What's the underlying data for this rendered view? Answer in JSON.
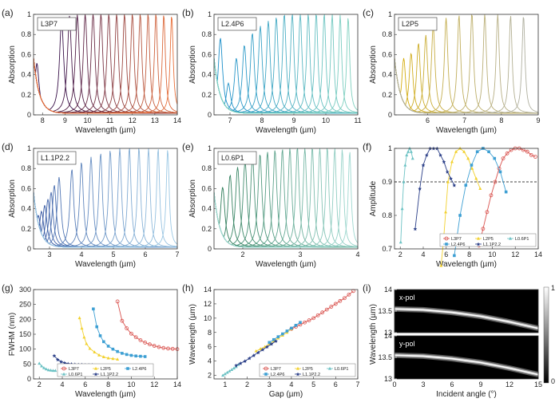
{
  "chart_data": [
    {
      "id": "a",
      "type": "line",
      "panel_label": "(a)",
      "box_label": "L3P7",
      "xlabel": "Wavelength (µm)",
      "ylabel": "Absorption",
      "xlim": [
        7.6,
        14
      ],
      "ylim": [
        0,
        1
      ],
      "xticks": [
        "8",
        "9",
        "10",
        "11",
        "12",
        "13",
        "14"
      ],
      "yticks": [
        "0",
        "0.2",
        "0.4",
        "0.6",
        "0.8",
        "1"
      ],
      "peaks": [
        7.75,
        8.85,
        9.2,
        9.55,
        9.9,
        10.25,
        10.6,
        10.95,
        11.3,
        11.65,
        12.0,
        12.35,
        12.7,
        13.05,
        13.4,
        13.75
      ],
      "peak_heights": [
        0.5,
        0.94,
        0.97,
        0.98,
        0.99,
        1.0,
        1.0,
        1.0,
        1.0,
        1.0,
        1.0,
        1.0,
        1.0,
        1.0,
        0.99,
        0.98
      ],
      "palette": [
        "#2d0a4a",
        "#e8703a"
      ]
    },
    {
      "id": "b",
      "type": "line",
      "panel_label": "(b)",
      "box_label": "L2.4P6",
      "xlabel": "Wavelength (µm)",
      "ylabel": "Absorption",
      "xlim": [
        6.5,
        11
      ],
      "ylim": [
        0,
        1
      ],
      "xticks": [
        "7",
        "8",
        "9",
        "10",
        "11"
      ],
      "yticks": [
        "0",
        "0.2",
        "0.4",
        "0.6",
        "0.8",
        "1"
      ],
      "peaks": [
        6.7,
        6.95,
        7.2,
        7.45,
        7.7,
        7.95,
        8.2,
        8.45,
        8.7,
        8.95,
        9.2,
        9.45,
        9.7,
        9.95,
        10.2,
        10.45,
        10.7
      ],
      "peak_heights": [
        0.75,
        0.3,
        0.55,
        0.68,
        0.8,
        0.87,
        0.92,
        0.96,
        0.99,
        1.0,
        1.0,
        1.0,
        1.0,
        1.0,
        0.99,
        0.98,
        0.96
      ],
      "palette": [
        "#1a8ec9",
        "#7fd0bf"
      ]
    },
    {
      "id": "c",
      "type": "line",
      "panel_label": "(c)",
      "box_label": "L2P5",
      "xlabel": "Wavelength (µm)",
      "ylabel": "Absorption",
      "xlim": [
        5.1,
        9
      ],
      "ylim": [
        0,
        1
      ],
      "xticks": [
        "6",
        "7",
        "8",
        "9"
      ],
      "yticks": [
        "0",
        "0.2",
        "0.4",
        "0.6",
        "0.8",
        "1"
      ],
      "peaks": [
        5.35,
        5.55,
        5.75,
        5.95,
        6.15,
        6.5,
        6.85,
        7.2,
        7.55,
        7.9,
        8.25,
        8.6
      ],
      "peak_heights": [
        0.55,
        0.6,
        0.7,
        0.78,
        0.88,
        0.95,
        0.98,
        1.0,
        1.0,
        1.0,
        0.98,
        0.98
      ],
      "palette": [
        "#d4ac0d",
        "#b0b0a0"
      ]
    },
    {
      "id": "d",
      "type": "line",
      "panel_label": "(d)",
      "box_label": "L1.1P2.2",
      "xlabel": "Wavelength (µm)",
      "ylabel": "Absorption",
      "xlim": [
        2.5,
        7
      ],
      "ylim": [
        0,
        1
      ],
      "xticks": [
        "3",
        "4",
        "5",
        "6",
        "7"
      ],
      "yticks": [
        "0",
        "0.2",
        "0.4",
        "0.6",
        "0.8",
        "1"
      ],
      "peaks": [
        2.65,
        2.75,
        2.85,
        2.95,
        3.05,
        3.15,
        3.3,
        3.7,
        4.0,
        4.3,
        4.6,
        4.9,
        5.2,
        5.5,
        5.8,
        6.1,
        6.4,
        6.7
      ],
      "peak_heights": [
        0.32,
        0.36,
        0.42,
        0.48,
        0.55,
        0.62,
        0.7,
        0.78,
        0.85,
        0.9,
        0.94,
        0.97,
        0.99,
        1.0,
        1.0,
        1.0,
        0.99,
        0.98
      ],
      "palette": [
        "#2a4b9b",
        "#9cc8e4"
      ]
    },
    {
      "id": "e",
      "type": "line",
      "panel_label": "(e)",
      "box_label": "L0.6P1",
      "xlabel": "Wavelength (µm)",
      "ylabel": "Absorption",
      "xlim": [
        1.5,
        4
      ],
      "ylim": [
        0,
        1
      ],
      "xticks": [
        "2",
        "3",
        "4"
      ],
      "yticks": [
        "0",
        "0.2",
        "0.4",
        "0.6",
        "0.8",
        "1"
      ],
      "peaks": [
        1.65,
        1.78,
        1.91,
        2.04,
        2.17,
        2.3,
        2.43,
        2.56,
        2.69,
        2.82,
        2.95,
        3.08,
        3.21,
        3.34,
        3.47,
        3.6,
        3.73,
        3.86
      ],
      "peak_heights": [
        0.6,
        0.72,
        0.8,
        0.86,
        0.9,
        0.93,
        0.95,
        0.97,
        0.98,
        0.99,
        1.0,
        1.0,
        1.0,
        1.0,
        1.0,
        0.99,
        0.98,
        0.96
      ],
      "palette": [
        "#2f7d5a",
        "#9ed8d0"
      ]
    },
    {
      "id": "f",
      "type": "line",
      "panel_label": "(f)",
      "xlabel": "Wavelength (µm)",
      "ylabel": "Amplitude",
      "xlim": [
        1.5,
        14
      ],
      "ylim": [
        0.7,
        1
      ],
      "xticks": [
        "2",
        "4",
        "6",
        "8",
        "10",
        "12",
        "14"
      ],
      "yticks": [
        "0.7",
        "0.8",
        "0.9",
        "1"
      ],
      "threshold": 0.9,
      "series": [
        {
          "name": "L3P7",
          "color": "#d9534f",
          "marker": "circle",
          "x": [
            8.85,
            9.2,
            9.55,
            9.9,
            10.25,
            10.6,
            10.95,
            11.3,
            11.65,
            12.0,
            12.35,
            12.7,
            13.05,
            13.4,
            13.75
          ],
          "y": [
            0.71,
            0.76,
            0.81,
            0.86,
            0.9,
            0.94,
            0.97,
            0.985,
            0.995,
            1.0,
            1.0,
            0.995,
            0.99,
            0.98,
            0.975
          ]
        },
        {
          "name": "L2P5",
          "color": "#f2d12e",
          "marker": "triangle",
          "x": [
            5.55,
            5.75,
            5.95,
            6.15,
            6.5,
            6.85,
            7.2,
            7.55,
            7.9,
            8.25,
            8.6,
            8.95
          ],
          "y": [
            0.65,
            0.72,
            0.81,
            0.9,
            0.96,
            0.99,
            1.0,
            0.99,
            0.97,
            0.94,
            0.91,
            0.88
          ]
        },
        {
          "name": "L0.6P1",
          "color": "#6cc2c4",
          "marker": "triangle",
          "x": [
            2.04,
            2.17,
            2.3,
            2.43,
            2.56,
            2.69,
            2.82,
            2.95,
            3.08
          ],
          "y": [
            0.72,
            0.82,
            0.9,
            0.95,
            0.98,
            0.99,
            1.0,
            0.99,
            0.97
          ]
        },
        {
          "name": "L2.4P6",
          "color": "#3d9fd3",
          "marker": "square",
          "x": [
            6.7,
            7.2,
            7.7,
            8.2,
            8.7,
            9.2,
            9.7,
            10.2,
            10.7,
            11.2
          ],
          "y": [
            0.68,
            0.8,
            0.89,
            0.95,
            0.99,
            1.0,
            0.99,
            0.97,
            0.93,
            0.87
          ]
        },
        {
          "name": "L1.1P2.2",
          "color": "#2b3f88",
          "marker": "star",
          "x": [
            3.3,
            3.7,
            4.0,
            4.3,
            4.6,
            4.9,
            5.2,
            5.5,
            5.8,
            6.1,
            6.4,
            6.7
          ],
          "y": [
            0.76,
            0.88,
            0.95,
            0.98,
            1.0,
            1.0,
            1.0,
            0.98,
            0.96,
            0.93,
            0.91,
            0.89
          ]
        }
      ],
      "legend_placement": "bottom-right"
    },
    {
      "id": "g",
      "type": "line",
      "panel_label": "(g)",
      "xlabel": "Wavelength (µm)",
      "ylabel": "FWHM (nm)",
      "xlim": [
        1.5,
        14
      ],
      "ylim": [
        0,
        300
      ],
      "xticks": [
        "2",
        "4",
        "6",
        "8",
        "10",
        "12",
        "14"
      ],
      "yticks": [
        "0",
        "50",
        "100",
        "150",
        "200",
        "250",
        "300"
      ],
      "series": [
        {
          "name": "L3P7",
          "color": "#d9534f",
          "marker": "circle",
          "x": [
            8.8,
            9.2,
            9.6,
            10.0,
            10.4,
            10.8,
            11.2,
            11.6,
            12.0,
            12.4,
            12.8,
            13.2,
            13.6,
            14.0
          ],
          "y": [
            260,
            195,
            170,
            152,
            140,
            130,
            122,
            116,
            111,
            107,
            104,
            102,
            101,
            100
          ]
        },
        {
          "name": "L2P5",
          "color": "#f2d12e",
          "marker": "triangle",
          "x": [
            5.5,
            5.7,
            5.9,
            6.1,
            6.4,
            6.8,
            7.2,
            7.6,
            8.0,
            8.4,
            8.8
          ],
          "y": [
            205,
            170,
            140,
            118,
            102,
            90,
            80,
            74,
            70,
            68,
            66
          ]
        },
        {
          "name": "L2.4P6",
          "color": "#3d9fd3",
          "marker": "square",
          "x": [
            6.7,
            7.0,
            7.3,
            7.6,
            8.0,
            8.4,
            8.8,
            9.2,
            9.6,
            10.0,
            10.4,
            10.8,
            11.2
          ],
          "y": [
            235,
            175,
            145,
            125,
            110,
            100,
            92,
            86,
            82,
            79,
            77,
            76,
            75
          ]
        },
        {
          "name": "L0.6P1",
          "color": "#6cc2c4",
          "marker": "triangle",
          "x": [
            2.0,
            2.2,
            2.4,
            2.6,
            2.8,
            3.0,
            3.2,
            3.4
          ],
          "y": [
            52,
            43,
            37,
            33,
            30,
            29,
            28,
            28
          ]
        },
        {
          "name": "L1.1P2.2",
          "color": "#2b3f88",
          "marker": "star",
          "x": [
            3.3,
            3.6,
            3.9,
            4.2,
            4.5,
            4.8,
            5.1,
            5.4,
            5.7,
            6.0,
            6.3,
            6.6
          ],
          "y": [
            78,
            65,
            58,
            54,
            51,
            50,
            49,
            48,
            48,
            47,
            47,
            47
          ]
        }
      ],
      "legend_placement": "bottom"
    },
    {
      "id": "h",
      "type": "line",
      "panel_label": "(h)",
      "xlabel": "Gap (µm)",
      "ylabel": "Wavelength (µm)",
      "xlim": [
        0.5,
        7
      ],
      "ylim": [
        1.5,
        14
      ],
      "xticks": [
        "1",
        "2",
        "3",
        "4",
        "5",
        "6",
        "7"
      ],
      "yticks": [
        "2",
        "4",
        "6",
        "8",
        "10",
        "12",
        "14"
      ],
      "series": [
        {
          "name": "L3P7",
          "color": "#d9534f",
          "marker": "circle",
          "x": [
            4.0,
            4.2,
            4.4,
            4.6,
            4.8,
            5.0,
            5.2,
            5.4,
            5.6,
            5.8,
            6.0,
            6.2,
            6.4,
            6.6,
            6.8
          ],
          "y": [
            8.5,
            8.8,
            9.1,
            9.4,
            9.7,
            10.0,
            10.4,
            10.8,
            11.2,
            11.6,
            12.0,
            12.4,
            12.8,
            13.3,
            13.8
          ]
        },
        {
          "name": "L2P5",
          "color": "#f2d12e",
          "marker": "triangle",
          "x": [
            2.4,
            2.6,
            2.8,
            3.0,
            3.2,
            3.4,
            3.6,
            3.8,
            4.0
          ],
          "y": [
            5.4,
            5.7,
            6.0,
            6.4,
            6.8,
            7.2,
            7.6,
            8.0,
            8.5
          ]
        },
        {
          "name": "L0.6P1",
          "color": "#6cc2c4",
          "marker": "triangle",
          "x": [
            0.9,
            1.0,
            1.1,
            1.2,
            1.3,
            1.4,
            1.5,
            1.6
          ],
          "y": [
            2.0,
            2.2,
            2.4,
            2.6,
            2.8,
            3.0,
            3.2,
            3.5
          ]
        },
        {
          "name": "L2.4P6",
          "color": "#3d9fd3",
          "marker": "square",
          "x": [
            3.0,
            3.2,
            3.4,
            3.6,
            3.8,
            4.0,
            4.2,
            4.4
          ],
          "y": [
            6.6,
            7.0,
            7.4,
            7.8,
            8.2,
            8.6,
            9.0,
            9.4
          ]
        },
        {
          "name": "L1.1P2.2",
          "color": "#2b3f88",
          "marker": "star",
          "x": [
            1.5,
            1.7,
            1.9,
            2.1,
            2.3,
            2.5,
            2.7,
            2.9,
            3.1,
            3.3
          ],
          "y": [
            3.4,
            3.7,
            4.0,
            4.4,
            4.8,
            5.2,
            5.6,
            6.0,
            6.4,
            6.8
          ]
        }
      ],
      "legend_placement": "bottom-right"
    },
    {
      "id": "i",
      "type": "heatmap",
      "panel_label": "(i)",
      "xlabel": "Incident angle (°)",
      "ylabel": "Wavelength (µm)",
      "xlim": [
        0,
        15
      ],
      "ylim": [
        13,
        14
      ],
      "xticks": [
        "0",
        "3",
        "6",
        "9",
        "12",
        "15"
      ],
      "yticks": [
        "13",
        "13.5",
        "14"
      ],
      "subpanels": [
        {
          "label": "x-pol",
          "peak_wavelength_vs_angle": {
            "angle": [
              0,
              3,
              6,
              9,
              12,
              15
            ],
            "wavelength": [
              13.55,
              13.53,
              13.47,
              13.38,
              13.25,
              13.1
            ]
          }
        },
        {
          "label": "y-pol",
          "peak_wavelength_vs_angle": {
            "angle": [
              0,
              3,
              6,
              9,
              12,
              15
            ],
            "wavelength": [
              13.55,
              13.53,
              13.47,
              13.38,
              13.25,
              13.1
            ]
          }
        }
      ],
      "colorbar": {
        "min": "0",
        "max": "1"
      },
      "colormap": [
        "#000000",
        "#ffffff"
      ]
    }
  ]
}
